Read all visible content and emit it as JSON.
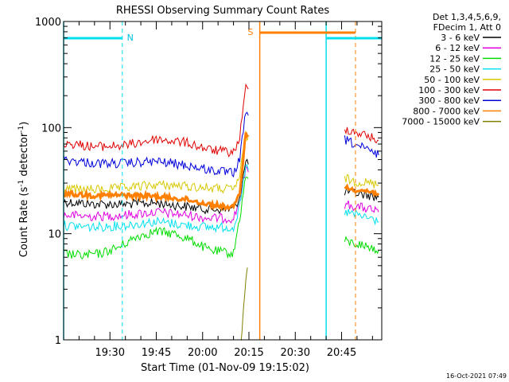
{
  "chart_data": {
    "type": "line",
    "title": "RHESSI Observing Summary Count Rates",
    "xlabel": "Start Time (01-Nov-09 19:15:02)",
    "ylabel_main": "Count Rate (s",
    "ylabel_sup1": "-1",
    "ylabel_mid": " detector",
    "ylabel_sup2": "-1",
    "ylabel_end": ")",
    "yscale": "log",
    "ylim": [
      1,
      1000
    ],
    "xlim_minutes": [
      0,
      103
    ],
    "y_ticks": [
      {
        "value": 1,
        "label": "1"
      },
      {
        "value": 10,
        "label": "10"
      },
      {
        "value": 100,
        "label": "100"
      },
      {
        "value": 1000,
        "label": "1000"
      }
    ],
    "x_ticks": [
      {
        "minute": 15,
        "label": "19:30"
      },
      {
        "minute": 30,
        "label": "19:45"
      },
      {
        "minute": 45,
        "label": "20:00"
      },
      {
        "minute": 60,
        "label": "20:15"
      },
      {
        "minute": 75,
        "label": "20:30"
      },
      {
        "minute": 90,
        "label": "20:45"
      }
    ],
    "legend_header": [
      "Det 1,3,4,5,6,9,",
      "FDecim 1, Att 0"
    ],
    "series": [
      {
        "name": "3 - 6 keV",
        "color": "#000000",
        "segments": [
          [
            [
              0,
              20
            ],
            [
              10,
              19
            ],
            [
              20,
              19
            ],
            [
              30,
              19.5
            ],
            [
              40,
              18
            ],
            [
              47,
              17
            ],
            [
              55,
              17
            ],
            [
              57,
              22
            ],
            [
              59,
              48
            ],
            [
              59.8,
              45
            ]
          ],
          [
            [
              91,
              25
            ],
            [
              95,
              24
            ],
            [
              99,
              23
            ],
            [
              102,
              22
            ]
          ]
        ]
      },
      {
        "name": "6 - 12 keV",
        "color": "#e000e0",
        "segments": [
          [
            [
              0,
              15
            ],
            [
              10,
              14.5
            ],
            [
              20,
              15
            ],
            [
              30,
              16
            ],
            [
              40,
              15
            ],
            [
              47,
              14
            ],
            [
              55,
              14
            ],
            [
              57,
              20
            ],
            [
              59,
              40
            ],
            [
              59.8,
              38
            ]
          ],
          [
            [
              91,
              19
            ],
            [
              95,
              18
            ],
            [
              99,
              17
            ],
            [
              102,
              16
            ]
          ]
        ]
      },
      {
        "name": "12 - 25 keV",
        "color": "#00dd00",
        "segments": [
          [
            [
              0,
              6.5
            ],
            [
              6,
              6.2
            ],
            [
              12,
              6.5
            ],
            [
              18,
              7.5
            ],
            [
              24,
              9.5
            ],
            [
              30,
              10.5
            ],
            [
              36,
              10
            ],
            [
              42,
              8.5
            ],
            [
              47,
              7
            ],
            [
              55,
              6.5
            ],
            [
              57,
              14
            ],
            [
              59,
              35
            ],
            [
              59.8,
              33
            ]
          ],
          [
            [
              91,
              8.5
            ],
            [
              95,
              8
            ],
            [
              99,
              7.5
            ],
            [
              102,
              7
            ]
          ]
        ]
      },
      {
        "name": "25 - 50 keV",
        "color": "#00e0ee",
        "segments": [
          [
            [
              0,
              12
            ],
            [
              10,
              11.5
            ],
            [
              20,
              12
            ],
            [
              30,
              13
            ],
            [
              40,
              12
            ],
            [
              47,
              11.5
            ],
            [
              55,
              11.5
            ],
            [
              57,
              18
            ],
            [
              59,
              42
            ],
            [
              59.8,
              40
            ]
          ],
          [
            [
              91,
              16
            ],
            [
              95,
              15
            ],
            [
              99,
              14
            ],
            [
              102,
              13
            ]
          ]
        ]
      },
      {
        "name": "50 - 100 keV",
        "color": "#d8c800",
        "segments": [
          [
            [
              0,
              26
            ],
            [
              10,
              26
            ],
            [
              20,
              27
            ],
            [
              30,
              29
            ],
            [
              40,
              28
            ],
            [
              47,
              27
            ],
            [
              55,
              26
            ],
            [
              57,
              35
            ],
            [
              59,
              85
            ],
            [
              59.8,
              80
            ]
          ],
          [
            [
              91,
              33
            ],
            [
              95,
              31
            ],
            [
              99,
              30
            ],
            [
              102,
              29
            ]
          ]
        ]
      },
      {
        "name": "100 - 300 keV",
        "color": "#e00000",
        "segments": [
          [
            [
              0,
              72
            ],
            [
              10,
              66
            ],
            [
              20,
              68
            ],
            [
              30,
              78
            ],
            [
              40,
              72
            ],
            [
              47,
              62
            ],
            [
              55,
              58
            ],
            [
              57,
              80
            ],
            [
              59,
              240
            ],
            [
              59.8,
              230
            ]
          ],
          [
            [
              91,
              98
            ],
            [
              95,
              90
            ],
            [
              99,
              82
            ],
            [
              102,
              76
            ]
          ]
        ]
      },
      {
        "name": "300 - 800 keV",
        "color": "#0000dd",
        "segments": [
          [
            [
              0,
              50
            ],
            [
              10,
              46
            ],
            [
              20,
              46
            ],
            [
              30,
              48
            ],
            [
              40,
              44
            ],
            [
              47,
              40
            ],
            [
              55,
              37
            ],
            [
              57,
              50
            ],
            [
              59,
              140
            ],
            [
              59.8,
              130
            ]
          ],
          [
            [
              91,
              77
            ],
            [
              95,
              68
            ],
            [
              99,
              60
            ],
            [
              102,
              55
            ]
          ]
        ]
      },
      {
        "name": "800 - 7000 keV",
        "color": "#ff8000",
        "segments": [
          [
            [
              0,
              24
            ],
            [
              10,
              23
            ],
            [
              20,
              23
            ],
            [
              30,
              22.5
            ],
            [
              40,
              21
            ],
            [
              47,
              19
            ],
            [
              55,
              17.5
            ],
            [
              57,
              24
            ],
            [
              59,
              90
            ],
            [
              59.8,
              85
            ]
          ],
          [
            [
              91,
              27
            ],
            [
              95,
              26
            ],
            [
              99,
              25
            ],
            [
              102,
              24
            ]
          ]
        ]
      },
      {
        "name": "7000 - 15000 keV",
        "color": "#808000",
        "segments": [
          [
            [
              57.5,
              1.05
            ],
            [
              58,
              1.5
            ],
            [
              58.5,
              2.2
            ],
            [
              59,
              3.5
            ],
            [
              59.5,
              4.8
            ]
          ]
        ]
      }
    ],
    "annotations": [
      {
        "text": "N",
        "color": "#00c0dd"
      },
      {
        "text": "S",
        "color": "#ff8000"
      }
    ],
    "timestamp": "16-Oct-2021 07:49"
  }
}
